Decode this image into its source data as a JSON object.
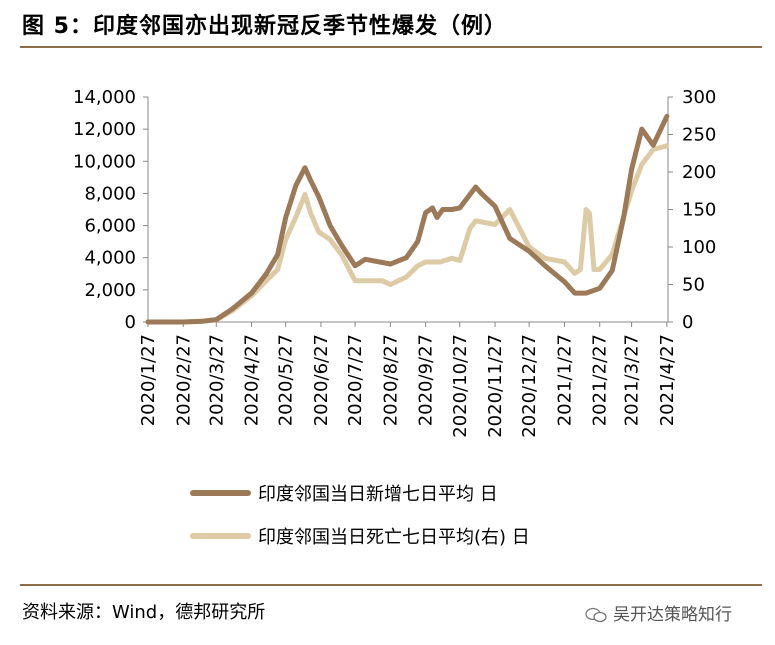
{
  "title": "图 5：印度邻国亦出现新冠反季节性爆发（例）",
  "source": "资料来源：Wind，德邦研究所",
  "watermark": "吴开达策略知行",
  "chart_data": {
    "type": "line",
    "title": "图 5：印度邻国亦出现新冠反季节性爆发（例）",
    "x_ticks": [
      "2020/1/27",
      "2020/2/27",
      "2020/3/27",
      "2020/4/27",
      "2020/5/27",
      "2020/6/27",
      "2020/7/27",
      "2020/8/27",
      "2020/9/27",
      "2020/10/27",
      "2020/11/27",
      "2020/12/27",
      "2021/1/27",
      "2021/2/27",
      "2021/3/27",
      "2021/4/27"
    ],
    "y_left": {
      "ylim": [
        0,
        14000
      ],
      "ticks": [
        "0",
        "2,000",
        "4,000",
        "6,000",
        "8,000",
        "10,000",
        "12,000",
        "14,000"
      ]
    },
    "y_right": {
      "ylim": [
        0,
        300
      ],
      "ticks": [
        "0",
        "50",
        "100",
        "150",
        "200",
        "250",
        "300"
      ]
    },
    "grid": false,
    "legend_position": "bottom",
    "series": [
      {
        "name": "印度邻国当日新增七日平均 日",
        "axis": "left",
        "color": "#9c7a57",
        "x": [
          "2020/1/27",
          "2020/2/27",
          "2020/3/15",
          "2020/3/27",
          "2020/4/10",
          "2020/4/27",
          "2020/5/10",
          "2020/5/20",
          "2020/5/27",
          "2020/6/5",
          "2020/6/13",
          "2020/6/18",
          "2020/6/25",
          "2020/7/5",
          "2020/7/15",
          "2020/7/27",
          "2020/8/5",
          "2020/8/20",
          "2020/8/27",
          "2020/9/10",
          "2020/9/20",
          "2020/9/27",
          "2020/10/3",
          "2020/10/7",
          "2020/10/12",
          "2020/10/20",
          "2020/10/27",
          "2020/11/10",
          "2020/11/15",
          "2020/11/27",
          "2020/12/10",
          "2020/12/27",
          "2021/1/10",
          "2021/1/27",
          "2021/2/5",
          "2021/2/15",
          "2021/2/27",
          "2021/3/10",
          "2021/3/20",
          "2021/3/27",
          "2021/4/5",
          "2021/4/15",
          "2021/4/27"
        ],
        "values": [
          0,
          0,
          50,
          150,
          800,
          1800,
          3000,
          4200,
          6500,
          8500,
          9600,
          8800,
          7800,
          6000,
          4800,
          3500,
          3900,
          3700,
          3600,
          4000,
          5000,
          6800,
          7100,
          6500,
          7000,
          7000,
          7100,
          8400,
          8000,
          7200,
          5200,
          4400,
          3500,
          2500,
          1800,
          1800,
          2100,
          3200,
          6500,
          9500,
          12000,
          11000,
          12800
        ]
      },
      {
        "name": "印度邻国当日死亡七日平均(右) 日",
        "axis": "right",
        "color": "#ddcba6",
        "x": [
          "2020/1/27",
          "2020/2/27",
          "2020/3/15",
          "2020/3/27",
          "2020/4/10",
          "2020/4/27",
          "2020/5/10",
          "2020/5/20",
          "2020/5/27",
          "2020/6/5",
          "2020/6/13",
          "2020/6/18",
          "2020/6/25",
          "2020/7/5",
          "2020/7/15",
          "2020/7/27",
          "2020/8/5",
          "2020/8/20",
          "2020/8/27",
          "2020/9/10",
          "2020/9/20",
          "2020/9/27",
          "2020/10/10",
          "2020/10/20",
          "2020/10/27",
          "2020/11/5",
          "2020/11/10",
          "2020/11/27",
          "2020/12/10",
          "2020/12/27",
          "2021/1/10",
          "2021/1/27",
          "2021/2/5",
          "2021/2/10",
          "2021/2/15",
          "2021/2/18",
          "2021/2/22",
          "2021/2/27",
          "2021/3/10",
          "2021/3/20",
          "2021/3/27",
          "2021/4/5",
          "2021/4/15",
          "2021/4/27"
        ],
        "values": [
          0,
          0,
          1,
          3,
          15,
          35,
          55,
          70,
          110,
          140,
          170,
          145,
          120,
          110,
          90,
          55,
          55,
          55,
          50,
          60,
          75,
          80,
          80,
          85,
          82,
          125,
          135,
          130,
          150,
          100,
          85,
          80,
          65,
          70,
          150,
          145,
          70,
          70,
          90,
          140,
          175,
          210,
          230,
          235
        ]
      }
    ]
  }
}
